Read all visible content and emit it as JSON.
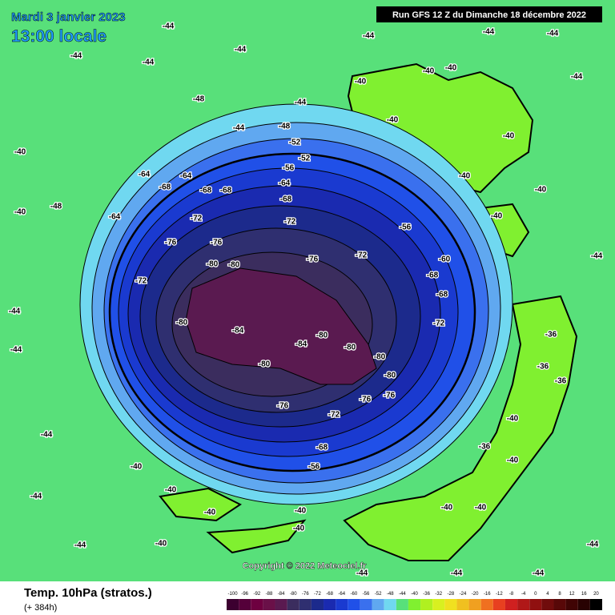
{
  "header": {
    "date": "Mardi 3 janvier 2023",
    "time": "13:00 locale",
    "run": "Run GFS 12 Z du Dimanche 18 décembre 2022"
  },
  "copyright": "Copyright © 2022 Meteociel.fr",
  "footer": {
    "title": "Temp. 10hPa (stratos.)",
    "lead": "(+ 384h)"
  },
  "legend": {
    "values": [
      -100,
      -96,
      -92,
      -88,
      -84,
      -80,
      -76,
      -72,
      -68,
      -64,
      -60,
      -56,
      -52,
      -48,
      -44,
      -40,
      -36,
      -32,
      -28,
      -24,
      -20,
      -16,
      -12,
      -8,
      -4,
      0,
      4,
      8,
      12,
      16,
      20
    ],
    "colors": [
      "#3c0030",
      "#55003a",
      "#6e0040",
      "#6a1048",
      "#5a1a50",
      "#3b2d5e",
      "#2f2f70",
      "#1c2a8c",
      "#1a2ab0",
      "#1a3ad0",
      "#2050e8",
      "#3a70ee",
      "#60a8f0",
      "#70d8f0",
      "#58e07a",
      "#80f030",
      "#b0f020",
      "#d8f020",
      "#f0e020",
      "#f0c020",
      "#f0a020",
      "#f07020",
      "#e84020",
      "#d02020",
      "#b01818",
      "#901010",
      "#700c0c",
      "#580808",
      "#400404",
      "#280202",
      "#000000"
    ]
  },
  "contour_labels": [
    -44,
    -44,
    -44,
    -44,
    -44,
    -48,
    -48,
    -52,
    -52,
    -56,
    -64,
    -64,
    -68,
    -68,
    -68,
    -64,
    -68,
    -64,
    -72,
    -72,
    -76,
    -76,
    -80,
    -80,
    -76,
    -72,
    -56,
    -60,
    -68,
    -72,
    -80,
    -84,
    -84,
    -80,
    -80,
    -80,
    -80,
    -80,
    -76,
    -76,
    -76,
    -72,
    -68,
    -56,
    -68,
    -72,
    -44,
    -44,
    -44,
    -44,
    -44,
    -40,
    -40,
    -40,
    -40,
    -40,
    -40,
    -40,
    -40,
    -40,
    -36,
    -40,
    -36,
    -36,
    -36,
    -40,
    -40,
    -40,
    -40,
    -40,
    -40,
    -40,
    -40,
    -44,
    -44,
    -44,
    -44,
    -44,
    -44,
    -40,
    -40,
    -48,
    -44,
    -44,
    -44,
    -44
  ]
}
